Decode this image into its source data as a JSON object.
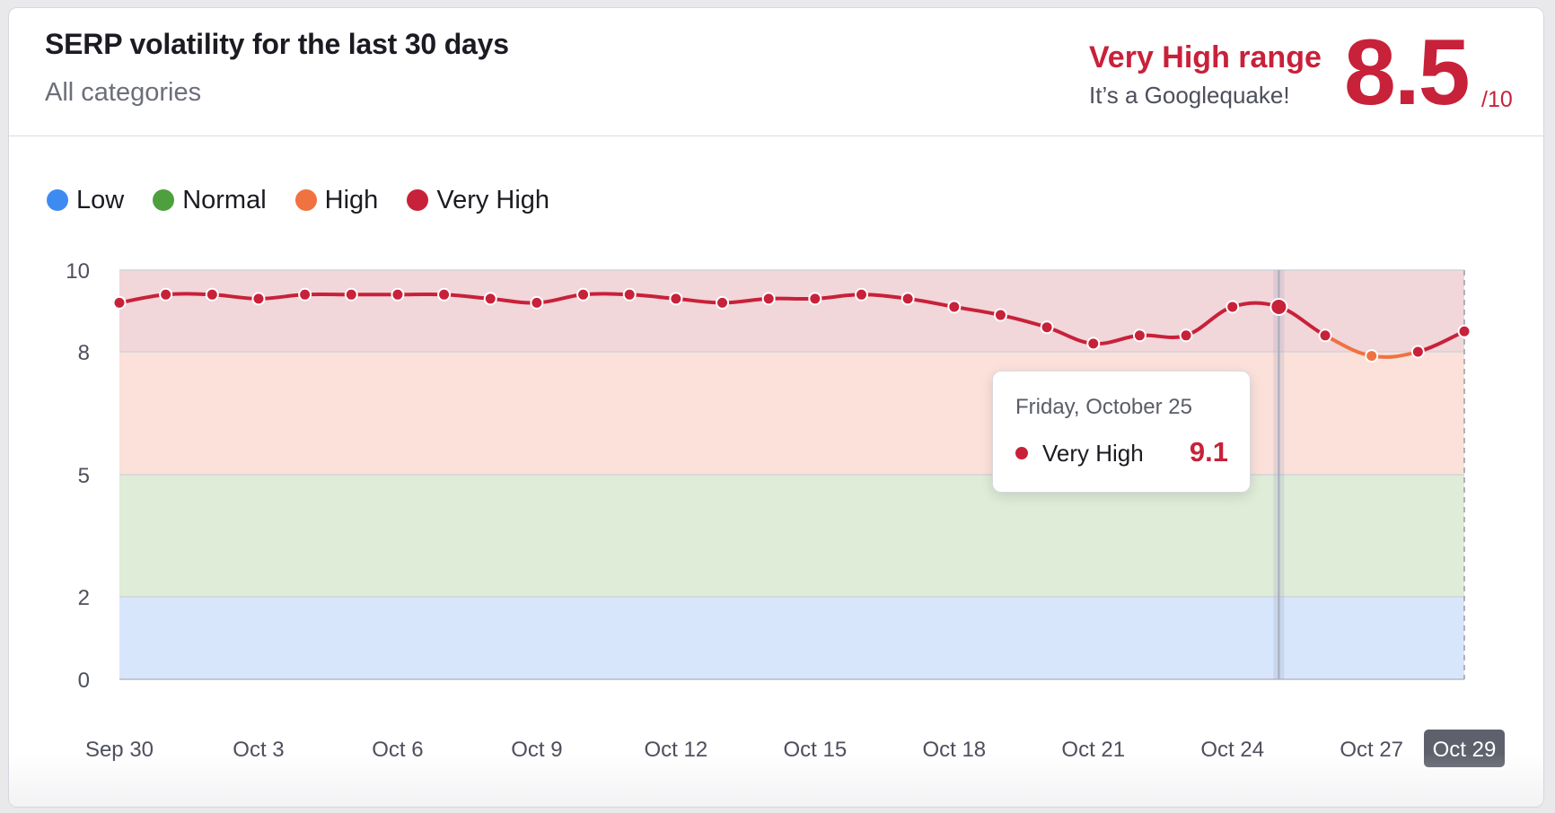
{
  "header": {
    "title": "SERP volatility for the last 30 days",
    "subtitle": "All categories",
    "range_label": "Very High range",
    "range_description": "It’s a Googlequake!",
    "score": "8.5",
    "score_max": "/10"
  },
  "colors": {
    "low": "#3d8bf0",
    "normal": "#4ea03e",
    "high": "#f07240",
    "very_high": "#c8213a",
    "band_low": "#d7e6fb",
    "band_normal": "#deecd8",
    "band_high": "#fbe1d9",
    "band_very_high": "#f1d6da"
  },
  "legend": [
    {
      "label": "Low",
      "color_key": "low"
    },
    {
      "label": "Normal",
      "color_key": "normal"
    },
    {
      "label": "High",
      "color_key": "high"
    },
    {
      "label": "Very High",
      "color_key": "very_high"
    }
  ],
  "tooltip": {
    "date": "Friday, October 25",
    "series": "Very High",
    "value": "9.1"
  },
  "chart_data": {
    "type": "line",
    "title": "SERP volatility for the last 30 days",
    "x": [
      "Sep 30",
      "Oct 1",
      "Oct 2",
      "Oct 3",
      "Oct 4",
      "Oct 5",
      "Oct 6",
      "Oct 7",
      "Oct 8",
      "Oct 9",
      "Oct 10",
      "Oct 11",
      "Oct 12",
      "Oct 13",
      "Oct 14",
      "Oct 15",
      "Oct 16",
      "Oct 17",
      "Oct 18",
      "Oct 19",
      "Oct 20",
      "Oct 21",
      "Oct 22",
      "Oct 23",
      "Oct 24",
      "Oct 25",
      "Oct 26",
      "Oct 27",
      "Oct 28",
      "Oct 29"
    ],
    "x_tick_labels": [
      "Sep 30",
      "Oct 3",
      "Oct 6",
      "Oct 9",
      "Oct 12",
      "Oct 15",
      "Oct 18",
      "Oct 21",
      "Oct 24",
      "Oct 27",
      "Oct 29"
    ],
    "highlighted_tick": "Oct 29",
    "y_ticks": [
      0,
      2,
      5,
      8,
      10
    ],
    "ylim": [
      0,
      10
    ],
    "y_scale": "piecewise by band",
    "bands": [
      {
        "name": "Low",
        "from": 0,
        "to": 2
      },
      {
        "name": "Normal",
        "from": 2,
        "to": 5
      },
      {
        "name": "High",
        "from": 5,
        "to": 8
      },
      {
        "name": "Very High",
        "from": 8,
        "to": 10
      }
    ],
    "series": [
      {
        "values": [
          9.2,
          9.4,
          9.4,
          9.3,
          9.4,
          9.4,
          9.4,
          9.4,
          9.3,
          9.2,
          9.4,
          9.4,
          9.3,
          9.2,
          9.3,
          9.3,
          9.4,
          9.3,
          9.1,
          8.9,
          8.6,
          8.2,
          8.4,
          8.4,
          9.1,
          9.1,
          8.4,
          7.9,
          8.0,
          8.5
        ]
      }
    ],
    "highlighted_index": 25,
    "grid": true
  }
}
